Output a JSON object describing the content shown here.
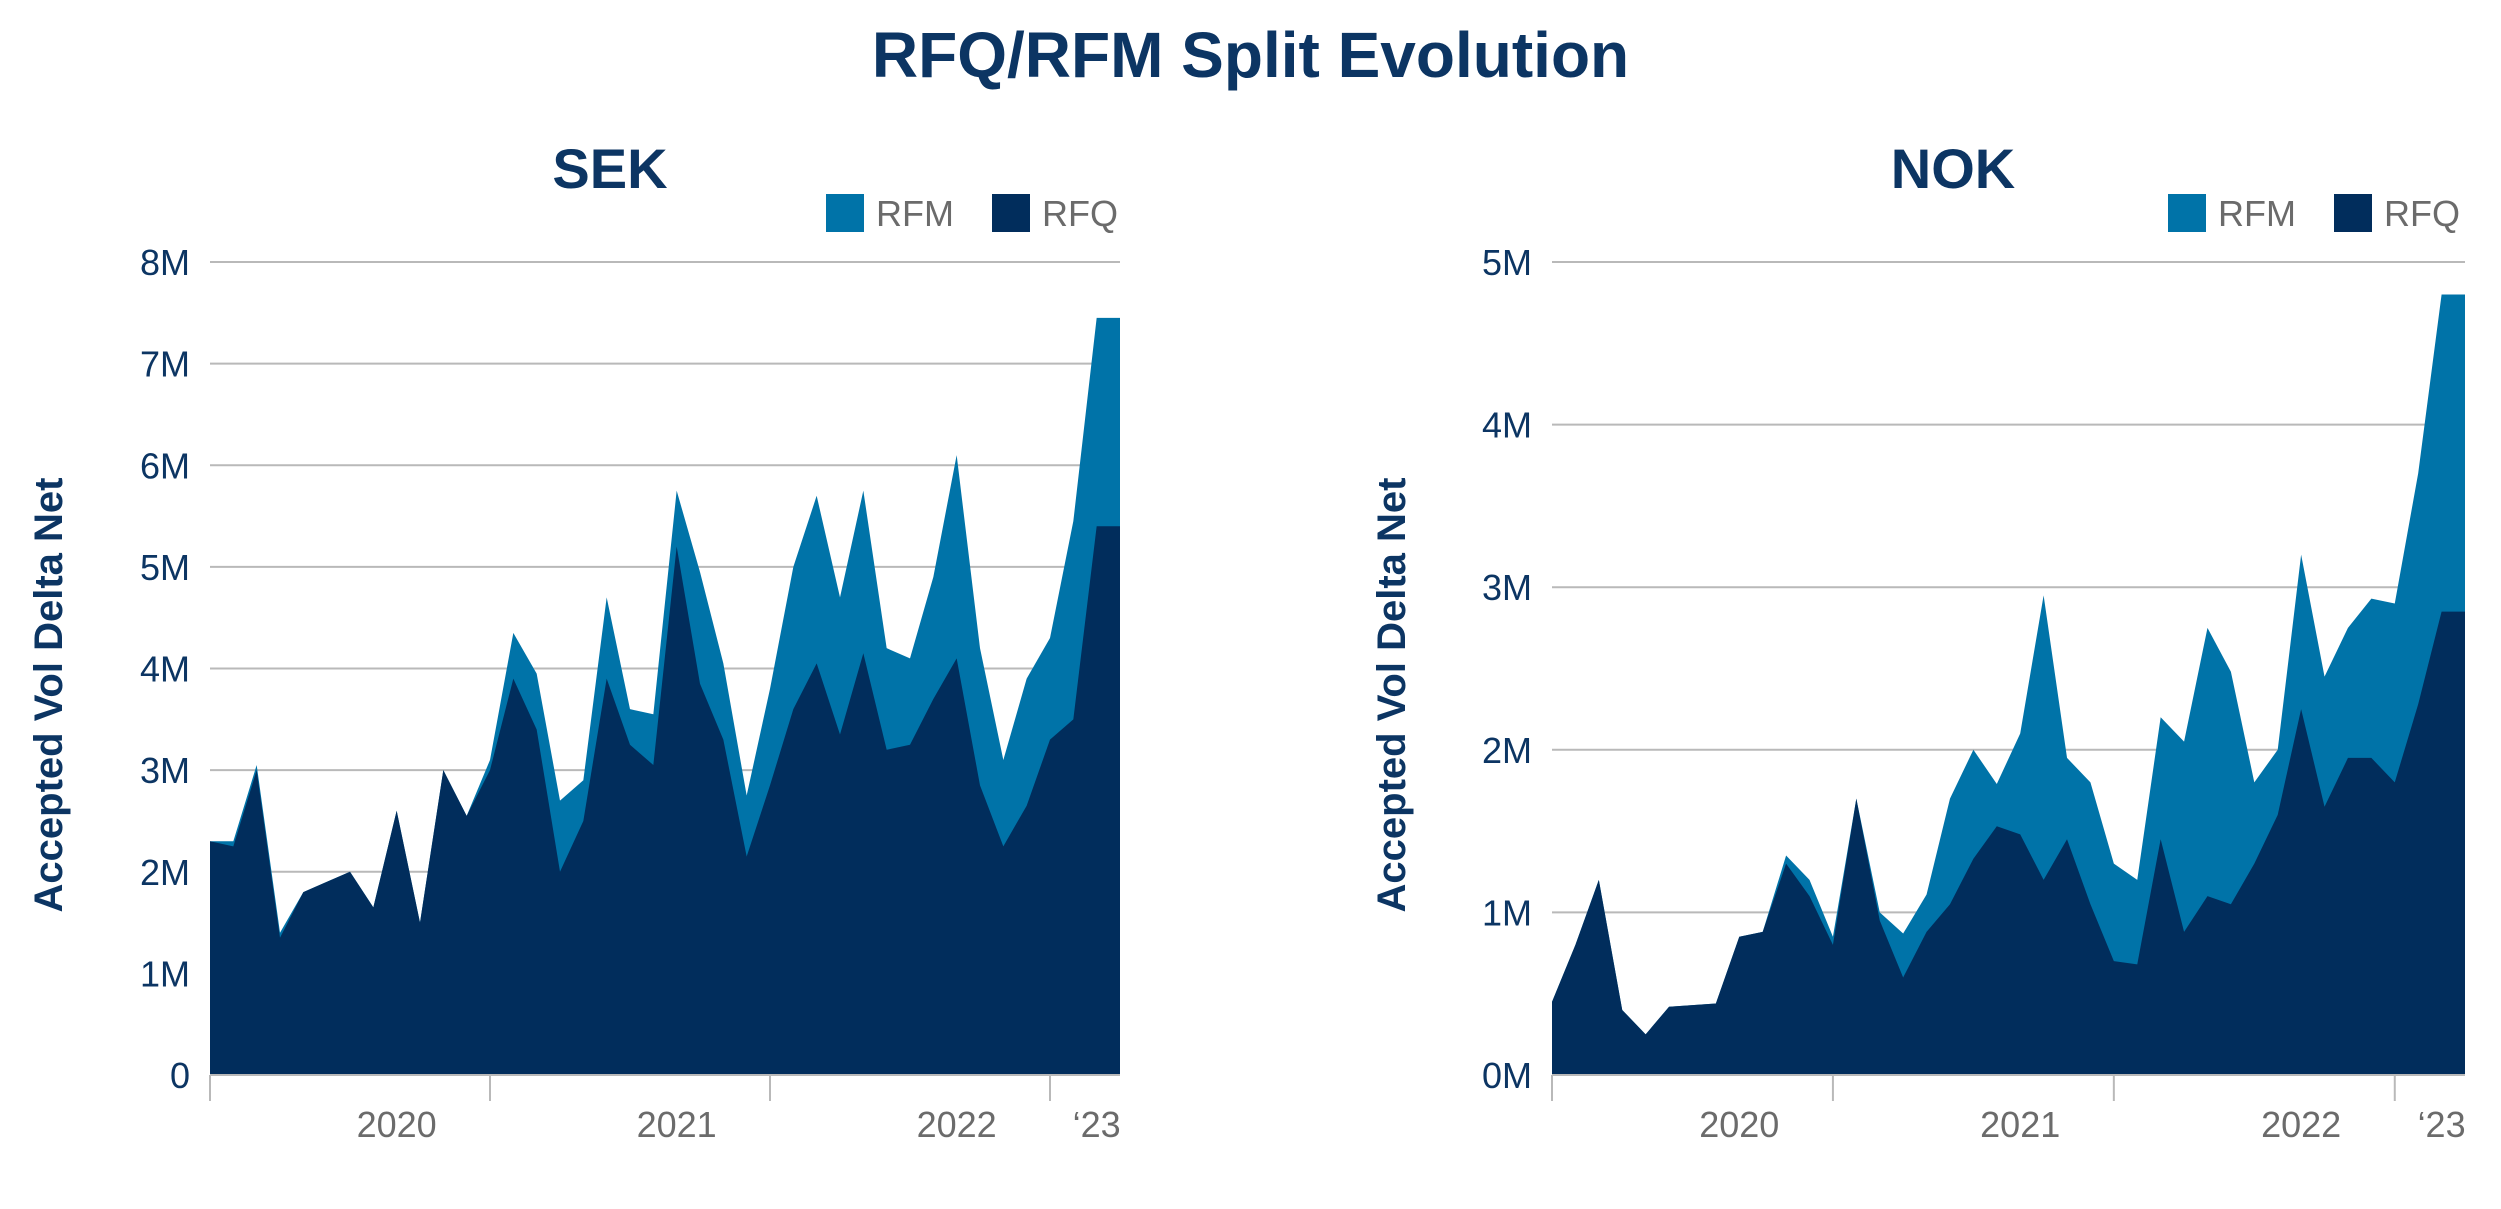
{
  "title": "RFQ/RFM Split Evolution",
  "colors": {
    "rfm": "#0073a8",
    "rfq": "#012d5c"
  },
  "chart_data": [
    {
      "type": "area",
      "stacked": true,
      "title": "SEK",
      "ylabel": "Accepted Vol Delta Net",
      "ylim": [
        0,
        8000000
      ],
      "yticks": [
        {
          "value": 0,
          "label": "0"
        },
        {
          "value": 1000000,
          "label": "1M"
        },
        {
          "value": 2000000,
          "label": "2M"
        },
        {
          "value": 3000000,
          "label": "3M"
        },
        {
          "value": 4000000,
          "label": "4M"
        },
        {
          "value": 5000000,
          "label": "5M"
        },
        {
          "value": 6000000,
          "label": "6M"
        },
        {
          "value": 7000000,
          "label": "7M"
        },
        {
          "value": 8000000,
          "label": "8M"
        }
      ],
      "xlim": [
        "2019-10",
        "2023-01"
      ],
      "xticks": [
        {
          "position": "2020-06",
          "label": "2020"
        },
        {
          "position": "2021-06",
          "label": "2021"
        },
        {
          "position": "2022-06",
          "label": "2022"
        },
        {
          "position": "2022-12",
          "label": "‘23"
        }
      ],
      "xboundaries": [
        "2019-10",
        "2020-10",
        "2021-10",
        "2022-10"
      ],
      "legend": {
        "placement": "top-right",
        "entries": [
          "RFM",
          "RFQ"
        ]
      },
      "x": [
        "2019-10",
        "2019-11",
        "2019-12",
        "2020-01",
        "2020-02",
        "2020-03",
        "2020-04",
        "2020-05",
        "2020-06",
        "2020-07",
        "2020-08",
        "2020-09",
        "2020-10",
        "2020-11",
        "2020-12",
        "2021-01",
        "2021-02",
        "2021-03",
        "2021-04",
        "2021-05",
        "2021-06",
        "2021-07",
        "2021-08",
        "2021-09",
        "2021-10",
        "2021-11",
        "2021-12",
        "2022-01",
        "2022-02",
        "2022-03",
        "2022-04",
        "2022-05",
        "2022-06",
        "2022-07",
        "2022-08",
        "2022-09",
        "2022-10",
        "2022-11",
        "2022-12",
        "2023-01"
      ],
      "series": [
        {
          "name": "RFQ",
          "values": [
            2300000,
            2250000,
            3000000,
            1350000,
            1800000,
            1900000,
            2000000,
            1650000,
            2600000,
            1500000,
            3000000,
            2550000,
            3000000,
            3900000,
            3400000,
            2000000,
            2500000,
            3900000,
            3250000,
            3050000,
            5200000,
            3850000,
            3300000,
            2150000,
            2850000,
            3600000,
            4050000,
            3350000,
            4150000,
            3200000,
            3250000,
            3700000,
            4100000,
            2850000,
            2250000,
            2650000,
            3300000,
            3500000,
            5400000,
            5400000
          ]
        },
        {
          "name": "RFM",
          "values": [
            0,
            50000,
            50000,
            50000,
            0,
            0,
            0,
            0,
            0,
            0,
            0,
            0,
            100000,
            450000,
            550000,
            700000,
            400000,
            800000,
            350000,
            500000,
            550000,
            1100000,
            750000,
            600000,
            950000,
            1400000,
            1650000,
            1350000,
            1600000,
            1000000,
            850000,
            1200000,
            2000000,
            1350000,
            850000,
            1250000,
            1000000,
            1950000,
            2050000,
            2050000
          ]
        }
      ]
    },
    {
      "type": "area",
      "stacked": true,
      "title": "NOK",
      "ylabel": "Accepted Vol Delta Net",
      "ylim": [
        0,
        5000000
      ],
      "yticks": [
        {
          "value": 0,
          "label": "0M"
        },
        {
          "value": 1000000,
          "label": "1M"
        },
        {
          "value": 2000000,
          "label": "2M"
        },
        {
          "value": 3000000,
          "label": "3M"
        },
        {
          "value": 4000000,
          "label": "4M"
        },
        {
          "value": 5000000,
          "label": "5M"
        }
      ],
      "xlim": [
        "2019-10",
        "2023-01"
      ],
      "xticks": [
        {
          "position": "2020-06",
          "label": "2020"
        },
        {
          "position": "2021-06",
          "label": "2021"
        },
        {
          "position": "2022-06",
          "label": "2022"
        },
        {
          "position": "2022-12",
          "label": "‘23"
        }
      ],
      "xboundaries": [
        "2019-10",
        "2020-10",
        "2021-10",
        "2022-10"
      ],
      "legend": {
        "placement": "top-right",
        "entries": [
          "RFM",
          "RFQ"
        ]
      },
      "x": [
        "2019-10",
        "2019-11",
        "2019-12",
        "2020-01",
        "2020-02",
        "2020-03",
        "2020-04",
        "2020-05",
        "2020-06",
        "2020-07",
        "2020-08",
        "2020-09",
        "2020-10",
        "2020-11",
        "2020-12",
        "2021-01",
        "2021-02",
        "2021-03",
        "2021-04",
        "2021-05",
        "2021-06",
        "2021-07",
        "2021-08",
        "2021-09",
        "2021-10",
        "2021-11",
        "2021-12",
        "2022-01",
        "2022-02",
        "2022-03",
        "2022-04",
        "2022-05",
        "2022-06",
        "2022-07",
        "2022-08",
        "2022-09",
        "2022-10",
        "2022-11",
        "2022-12",
        "2023-01"
      ],
      "series": [
        {
          "name": "RFQ",
          "values": [
            450000,
            800000,
            1200000,
            400000,
            250000,
            420000,
            430000,
            440000,
            850000,
            880000,
            1300000,
            1100000,
            800000,
            1700000,
            950000,
            600000,
            880000,
            1050000,
            1330000,
            1530000,
            1480000,
            1200000,
            1450000,
            1050000,
            700000,
            680000,
            1450000,
            880000,
            1100000,
            1050000,
            1300000,
            1600000,
            2250000,
            1650000,
            1950000,
            1950000,
            1800000,
            2280000,
            2850000,
            2850000
          ]
        },
        {
          "name": "RFM",
          "values": [
            0,
            0,
            0,
            0,
            0,
            0,
            0,
            0,
            0,
            0,
            50000,
            100000,
            50000,
            0,
            50000,
            270000,
            230000,
            650000,
            670000,
            260000,
            620000,
            1750000,
            500000,
            750000,
            600000,
            520000,
            750000,
            1170000,
            1650000,
            1430000,
            500000,
            400000,
            950000,
            800000,
            800000,
            980000,
            1100000,
            1420000,
            1950000,
            1950000
          ]
        }
      ]
    }
  ]
}
